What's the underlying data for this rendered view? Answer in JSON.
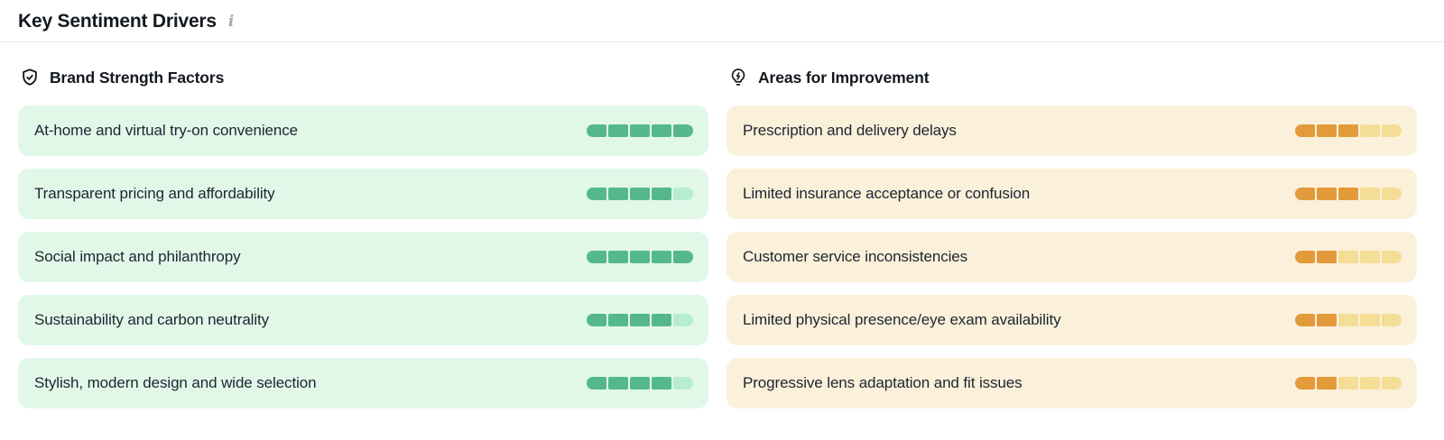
{
  "header": {
    "title": "Key Sentiment Drivers"
  },
  "icons": {
    "info": "i"
  },
  "colors": {
    "positive_row_bg": "#e1f8e9",
    "positive_fill": "#55b88c",
    "positive_empty": "#b8ecd0",
    "negative_row_bg": "#fbf0da",
    "negative_fill": "#e29a3a",
    "negative_empty": "#f4de96"
  },
  "columns": [
    {
      "id": "strengths",
      "icon": "shield-check-icon",
      "title": "Brand Strength Factors",
      "items": [
        {
          "label": "At-home and virtual try-on convenience",
          "score": 5,
          "max": 5
        },
        {
          "label": "Transparent pricing and affordability",
          "score": 4,
          "max": 5
        },
        {
          "label": "Social impact and philanthropy",
          "score": 5,
          "max": 5
        },
        {
          "label": "Sustainability and carbon neutrality",
          "score": 4,
          "max": 5
        },
        {
          "label": "Stylish, modern design and wide selection",
          "score": 4,
          "max": 5
        }
      ]
    },
    {
      "id": "improvements",
      "icon": "lightbulb-bolt-icon",
      "title": "Areas for Improvement",
      "items": [
        {
          "label": "Prescription and delivery delays",
          "score": 3,
          "max": 5
        },
        {
          "label": "Limited insurance acceptance or confusion",
          "score": 3,
          "max": 5
        },
        {
          "label": "Customer service inconsistencies",
          "score": 2,
          "max": 5
        },
        {
          "label": "Limited physical presence/eye exam availability",
          "score": 2,
          "max": 5
        },
        {
          "label": "Progressive lens adaptation and fit issues",
          "score": 2,
          "max": 5
        }
      ]
    }
  ]
}
